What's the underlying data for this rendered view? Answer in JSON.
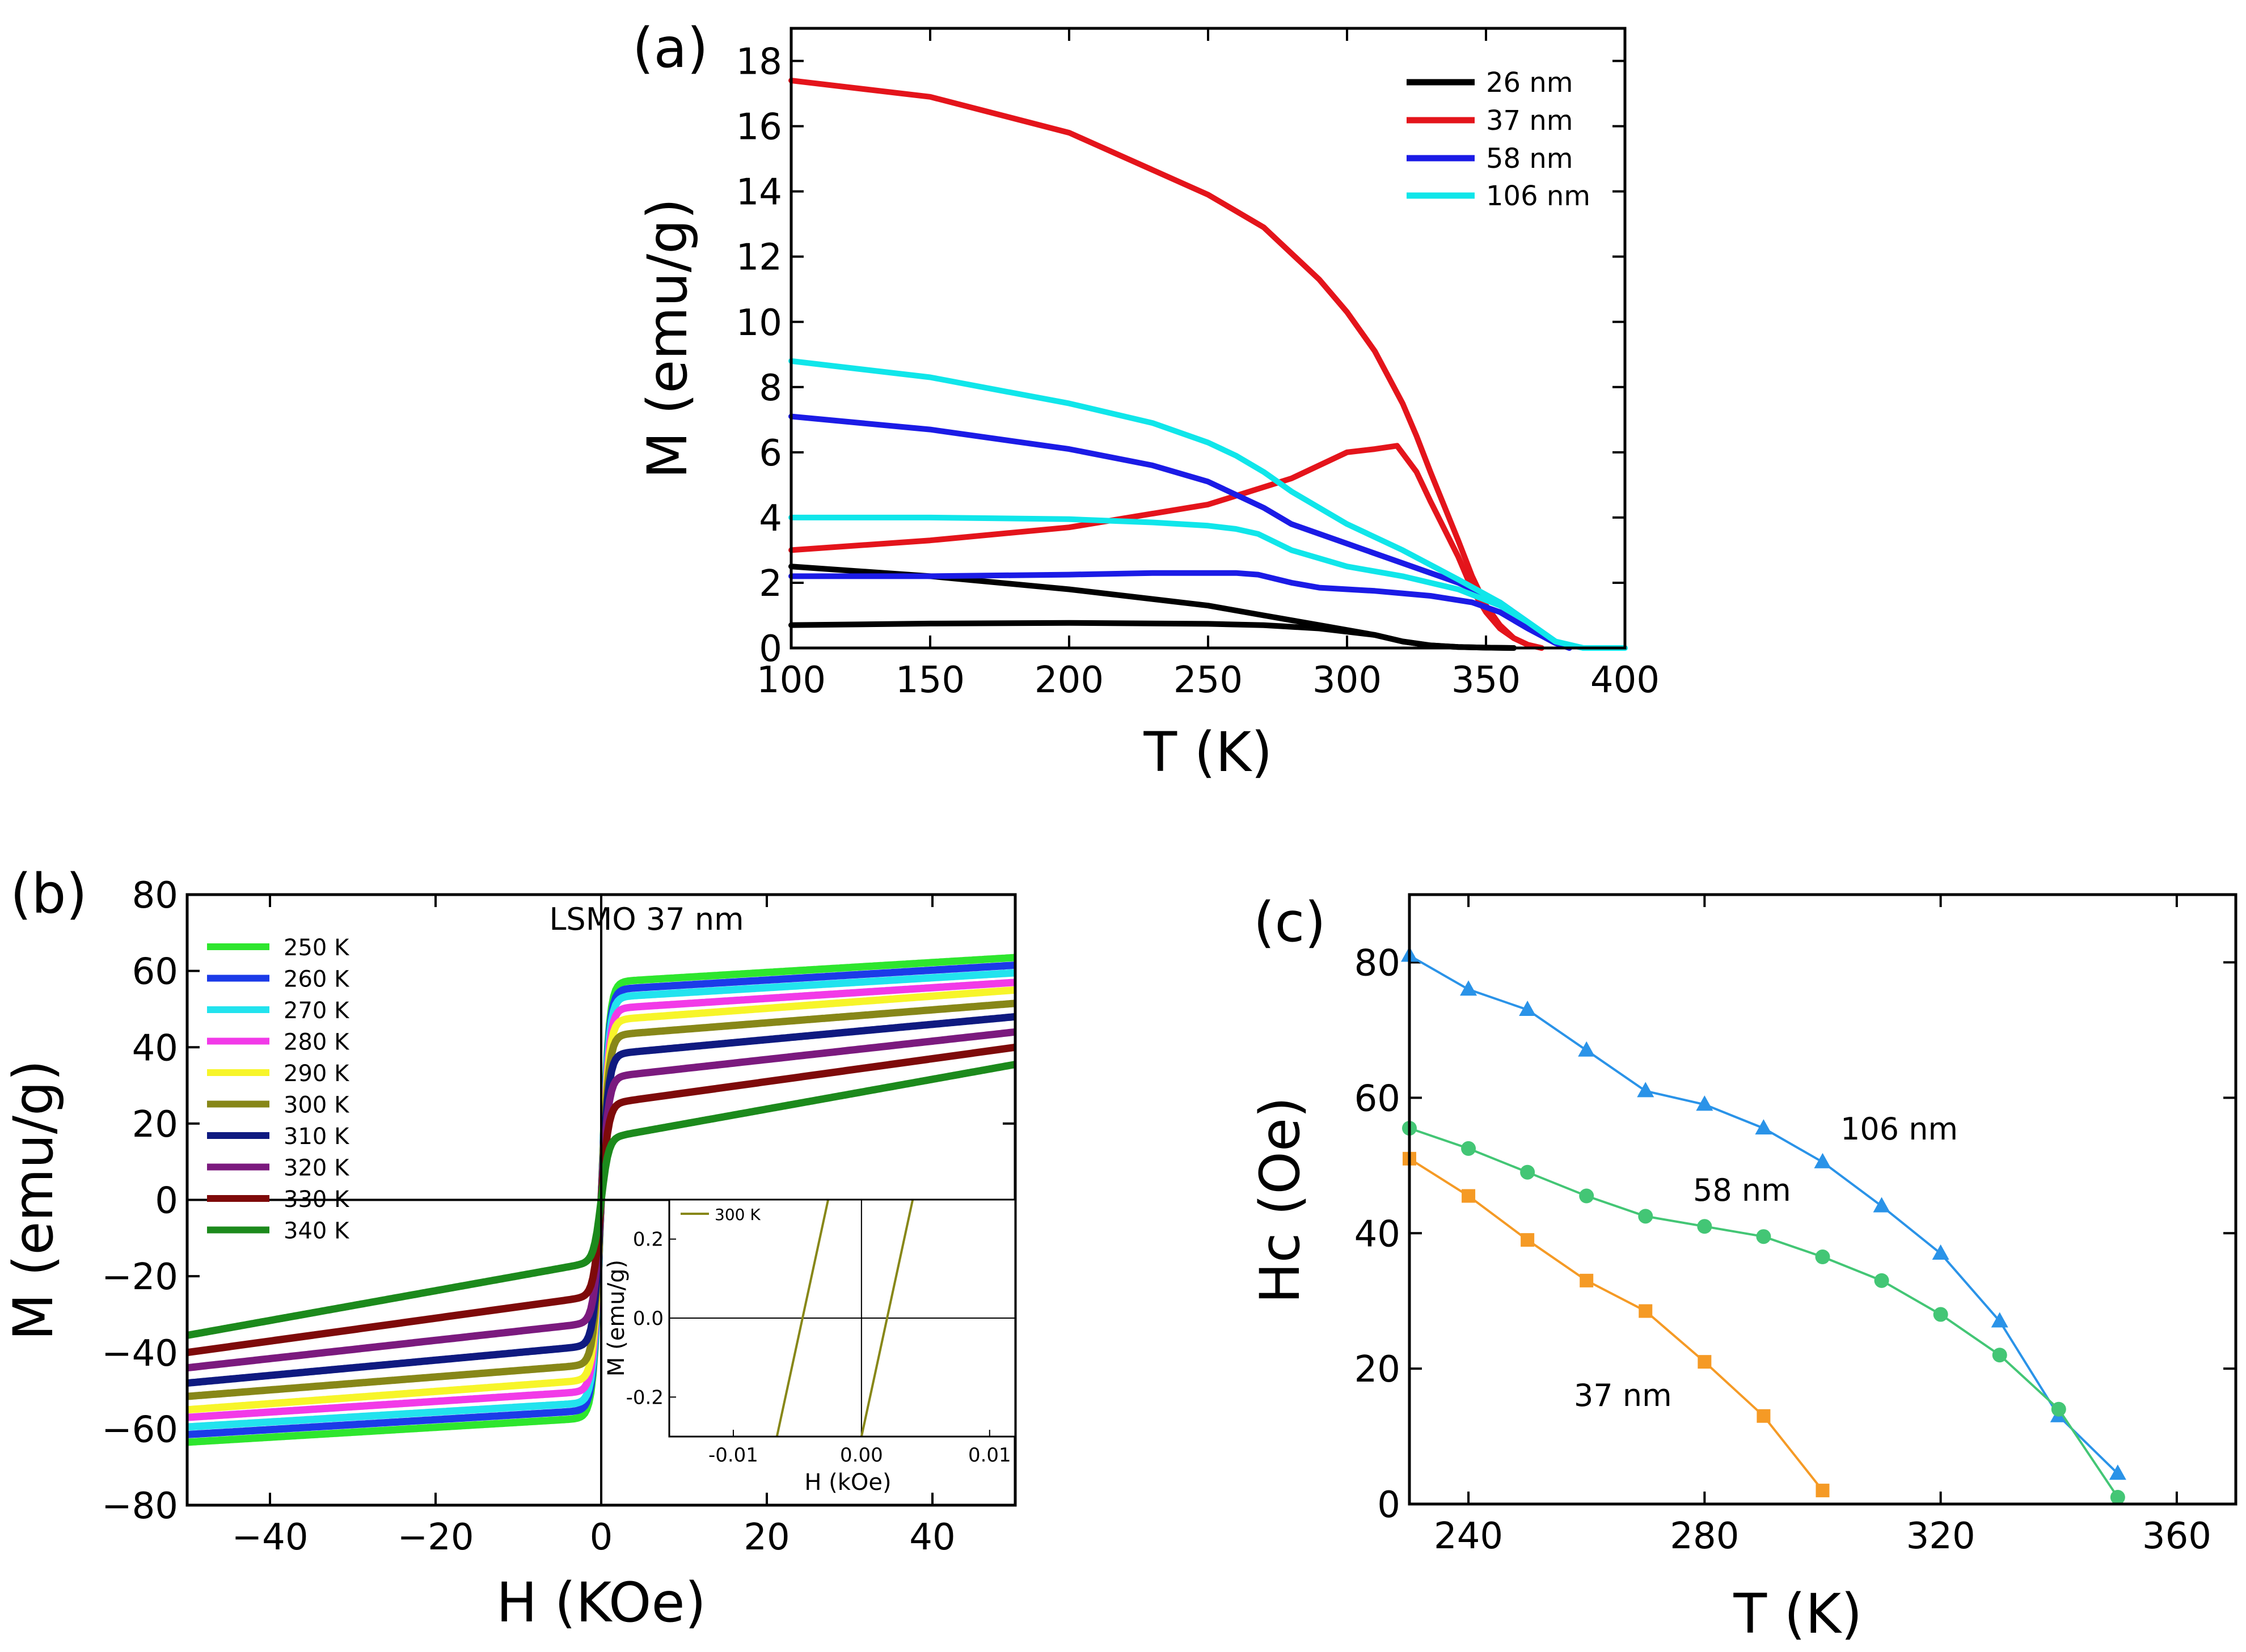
{
  "colors": {
    "black": "#000000",
    "red": "#e4141b",
    "blue": "#1b1be6",
    "cyan": "#10e6ea",
    "green_bright": "#2ee62e",
    "blue_b": "#1b3be8",
    "cyan_b": "#22e3ee",
    "magenta": "#f23ae8",
    "yellow": "#f7f52a",
    "olive": "#878718",
    "navy": "#0f1a80",
    "purple": "#7b1a7e",
    "maroon": "#7e0a0a",
    "darkgreen": "#1c8a1c",
    "c_blue": "#2a93e8",
    "c_green": "#43c675",
    "c_orange": "#f59a25"
  },
  "chart_data": [
    {
      "panel": "(a)",
      "type": "line",
      "xlabel": "T (K)",
      "ylabel": "M (emu/g)",
      "xlim": [
        100,
        400
      ],
      "ylim": [
        0,
        19
      ],
      "xticks": [
        100,
        150,
        200,
        250,
        300,
        350,
        400
      ],
      "yticks": [
        0,
        2,
        4,
        6,
        8,
        10,
        12,
        14,
        16,
        18
      ],
      "legend_position": "top-right",
      "series": [
        {
          "name": "26 nm",
          "branch": "FC",
          "color": "#000000",
          "x": [
            100,
            150,
            200,
            250,
            270,
            290,
            310,
            320,
            330,
            340,
            350,
            360
          ],
          "y": [
            2.5,
            2.2,
            1.8,
            1.3,
            1.0,
            0.7,
            0.4,
            0.2,
            0.08,
            0.03,
            0.01,
            0
          ]
        },
        {
          "name": "26 nm",
          "branch": "ZFC",
          "color": "#000000",
          "x": [
            100,
            150,
            200,
            250,
            270,
            290,
            310,
            320,
            330,
            340,
            350,
            360
          ],
          "y": [
            0.7,
            0.75,
            0.77,
            0.74,
            0.7,
            0.6,
            0.4,
            0.2,
            0.08,
            0.03,
            0.01,
            0
          ]
        },
        {
          "name": "37 nm",
          "branch": "FC",
          "color": "#e4141b",
          "x": [
            100,
            150,
            200,
            250,
            270,
            290,
            300,
            310,
            320,
            325,
            330,
            340,
            345,
            350,
            355,
            360,
            365,
            370
          ],
          "y": [
            17.4,
            16.9,
            15.8,
            13.9,
            12.9,
            11.3,
            10.3,
            9.1,
            7.5,
            6.5,
            5.4,
            3.3,
            2.2,
            1.3,
            0.7,
            0.3,
            0.1,
            0
          ]
        },
        {
          "name": "37 nm",
          "branch": "ZFC",
          "color": "#e4141b",
          "x": [
            100,
            150,
            200,
            250,
            280,
            300,
            310,
            318,
            325,
            330,
            340,
            345,
            350,
            355,
            360,
            365,
            370
          ],
          "y": [
            3.0,
            3.3,
            3.7,
            4.4,
            5.2,
            6.0,
            6.1,
            6.2,
            5.4,
            4.5,
            2.8,
            1.8,
            1.1,
            0.6,
            0.3,
            0.1,
            0
          ]
        },
        {
          "name": "58 nm",
          "branch": "FC",
          "color": "#1b1be6",
          "x": [
            100,
            150,
            200,
            230,
            250,
            260,
            270,
            280,
            300,
            320,
            340,
            355,
            365,
            375,
            380
          ],
          "y": [
            7.1,
            6.7,
            6.1,
            5.6,
            5.1,
            4.7,
            4.3,
            3.8,
            3.2,
            2.6,
            2.0,
            1.4,
            0.8,
            0.2,
            0
          ]
        },
        {
          "name": "58 nm",
          "branch": "ZFC",
          "color": "#1b1be6",
          "x": [
            100,
            150,
            200,
            230,
            250,
            260,
            268,
            280,
            290,
            310,
            330,
            345,
            355,
            365,
            375,
            380
          ],
          "y": [
            2.2,
            2.2,
            2.25,
            2.3,
            2.3,
            2.3,
            2.25,
            2.0,
            1.85,
            1.75,
            1.6,
            1.4,
            1.1,
            0.6,
            0.15,
            0
          ]
        },
        {
          "name": "106 nm",
          "branch": "FC",
          "color": "#10e6ea",
          "x": [
            100,
            150,
            200,
            230,
            250,
            260,
            270,
            280,
            300,
            320,
            340,
            355,
            365,
            375,
            385,
            400
          ],
          "y": [
            8.8,
            8.3,
            7.5,
            6.9,
            6.3,
            5.9,
            5.4,
            4.8,
            3.8,
            3.0,
            2.1,
            1.4,
            0.8,
            0.2,
            0,
            0
          ]
        },
        {
          "name": "106 nm",
          "branch": "ZFC",
          "color": "#10e6ea",
          "x": [
            100,
            150,
            200,
            230,
            250,
            260,
            268,
            280,
            300,
            320,
            340,
            355,
            365,
            375,
            385,
            400
          ],
          "y": [
            4.0,
            4.0,
            3.95,
            3.85,
            3.75,
            3.65,
            3.5,
            3.0,
            2.5,
            2.2,
            1.8,
            1.3,
            0.8,
            0.2,
            0,
            0
          ]
        }
      ],
      "legend": [
        "26 nm",
        "37 nm",
        "58 nm",
        "106 nm"
      ]
    },
    {
      "panel": "(b)",
      "type": "line",
      "title": "LSMO 37 nm",
      "xlabel": "H (KOe)",
      "ylabel": "M (emu/g)",
      "xlim": [
        -50,
        50
      ],
      "ylim": [
        -80,
        80
      ],
      "xticks": [
        -40,
        -20,
        0,
        20,
        40
      ],
      "yticks": [
        -80,
        -60,
        -40,
        -20,
        0,
        20,
        40,
        60,
        80
      ],
      "legend_position": "top-left",
      "series": [
        {
          "name": "250 K",
          "color": "#2ee62e",
          "Ms": 57,
          "slope": 0.13
        },
        {
          "name": "260 K",
          "color": "#1b3be8",
          "Ms": 55,
          "slope": 0.13
        },
        {
          "name": "270 K",
          "color": "#22e3ee",
          "Ms": 53,
          "slope": 0.13
        },
        {
          "name": "280 K",
          "color": "#f23ae8",
          "Ms": 50,
          "slope": 0.14
        },
        {
          "name": "290 K",
          "color": "#f7f52a",
          "Ms": 47,
          "slope": 0.16
        },
        {
          "name": "300 K",
          "color": "#878718",
          "Ms": 43,
          "slope": 0.17
        },
        {
          "name": "310 K",
          "color": "#0f1a80",
          "Ms": 38,
          "slope": 0.2
        },
        {
          "name": "320 K",
          "color": "#7b1a7e",
          "Ms": 32,
          "slope": 0.24
        },
        {
          "name": "330 K",
          "color": "#7e0a0a",
          "Ms": 25,
          "slope": 0.3
        },
        {
          "name": "340 K",
          "color": "#1c8a1c",
          "Ms": 16,
          "slope": 0.39
        }
      ],
      "inset": {
        "xlabel": "H (kOe)",
        "ylabel": "M (emu/g)",
        "xlim": [
          -0.015,
          0.012
        ],
        "ylim": [
          -0.3,
          0.3
        ],
        "xticks": [
          -0.01,
          0.0,
          0.01
        ],
        "xtick_labels": [
          "-0.01",
          "0.00",
          "0.01"
        ],
        "yticks": [
          -0.2,
          0.0,
          0.2
        ],
        "ytick_labels": [
          "-0.2",
          "0.0",
          "0.2"
        ],
        "legend": "300 K",
        "color": "#878718",
        "lines": [
          {
            "x": [
              -0.0066,
              -0.0026
            ],
            "y": [
              -0.3,
              0.3
            ]
          },
          {
            "x": [
              0.0,
              0.004
            ],
            "y": [
              -0.3,
              0.3
            ]
          }
        ]
      }
    },
    {
      "panel": "(c)",
      "type": "line",
      "xlabel": "T (K)",
      "ylabel": "Hc (Oe)",
      "xlim": [
        230,
        370
      ],
      "ylim": [
        0,
        90
      ],
      "xticks": [
        240,
        280,
        320,
        360
      ],
      "yticks": [
        0,
        20,
        40,
        60,
        80
      ],
      "series": [
        {
          "name": "106 nm",
          "color": "#2a93e8",
          "marker": "triangle",
          "x": [
            230,
            240,
            250,
            260,
            270,
            280,
            290,
            300,
            310,
            320,
            330,
            340,
            350
          ],
          "y": [
            81,
            76,
            73,
            67,
            61,
            59,
            55.5,
            50.5,
            44,
            37,
            27,
            13,
            4.5
          ]
        },
        {
          "name": "58 nm",
          "color": "#43c675",
          "marker": "circle",
          "x": [
            230,
            240,
            250,
            260,
            270,
            280,
            290,
            300,
            310,
            320,
            330,
            340,
            350
          ],
          "y": [
            55.5,
            52.5,
            49,
            45.5,
            42.5,
            41,
            39.5,
            36.5,
            33,
            28,
            22,
            14,
            1
          ]
        },
        {
          "name": "37 nm",
          "color": "#f59a25",
          "marker": "square",
          "x": [
            230,
            240,
            250,
            260,
            270,
            280,
            290,
            300
          ],
          "y": [
            51,
            45.5,
            39,
            33,
            28.5,
            21,
            13,
            2
          ]
        }
      ],
      "labels": [
        "106 nm",
        "58 nm",
        "37 nm"
      ]
    }
  ]
}
